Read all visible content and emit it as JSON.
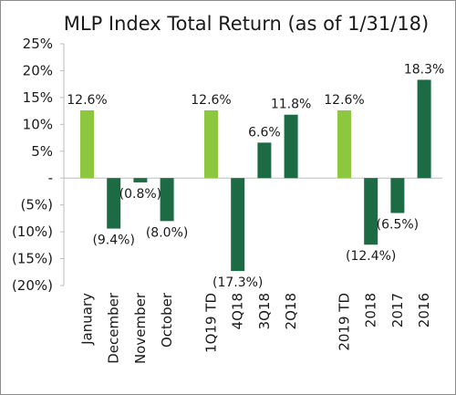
{
  "chart_data": {
    "type": "bar",
    "title": "MLP Index Total Return (as of 1/31/18)",
    "ylim": [
      -20,
      25
    ],
    "yticks": [
      25,
      20,
      15,
      10,
      5,
      0,
      -5,
      -10,
      -15,
      -20
    ],
    "ytick_labels": [
      "25%",
      "20%",
      "15%",
      "10%",
      "5%",
      "-",
      "(5%)",
      "(10%)",
      "(15%)",
      "(20%)"
    ],
    "groups": [
      {
        "categories": [
          "January",
          "December",
          "November",
          "October"
        ],
        "values": [
          12.6,
          -9.4,
          -0.8,
          -8.0
        ],
        "labels": [
          "12.6%",
          "(9.4%)",
          "(0.8%)",
          "(8.0%)"
        ]
      },
      {
        "categories": [
          "1Q19 TD",
          "4Q18",
          "3Q18",
          "2Q18"
        ],
        "values": [
          12.6,
          -17.3,
          6.6,
          11.8
        ],
        "labels": [
          "12.6%",
          "(17.3%)",
          "6.6%",
          "11.8%"
        ]
      },
      {
        "categories": [
          "2019 TD",
          "2018",
          "2017",
          "2016"
        ],
        "values": [
          12.6,
          -12.4,
          -6.5,
          18.3
        ],
        "labels": [
          "12.6%",
          "(12.4%)",
          "(6.5%)",
          "18.3%"
        ]
      }
    ],
    "colors": {
      "current": "#8dc63f",
      "other": "#1d6b45"
    }
  }
}
